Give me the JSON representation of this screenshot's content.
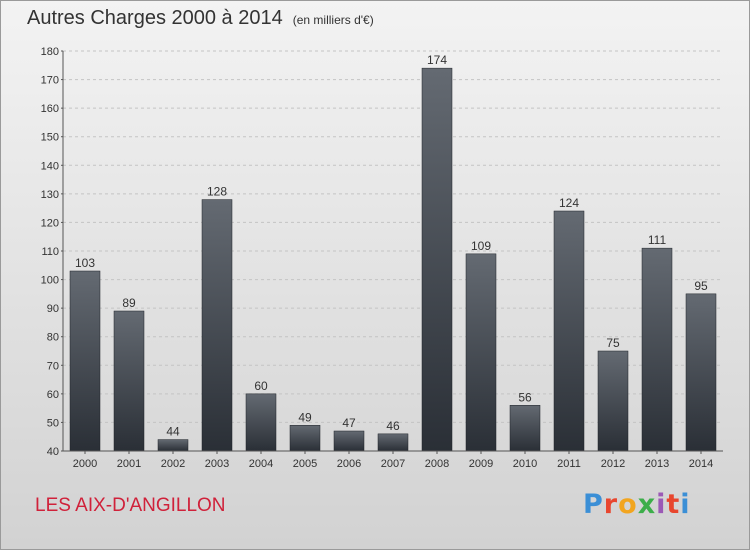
{
  "header": {
    "title": "Autres Charges 2000 à 2014",
    "subtitle": "(en milliers d'€)"
  },
  "footer": {
    "place": "LES AIX-D'ANGILLON",
    "logo_letters": [
      "P",
      "r",
      "o",
      "x",
      "i",
      "t",
      "i"
    ],
    "logo_colors": [
      "#3b8fd6",
      "#e8462e",
      "#f2a51f",
      "#3cae4a",
      "#9b59b6",
      "#e8462e",
      "#3b8fd6"
    ]
  },
  "chart_data": {
    "type": "bar",
    "title": "Autres Charges 2000 à 2014",
    "subtitle": "(en milliers d'€)",
    "categories": [
      "2000",
      "2001",
      "2002",
      "2003",
      "2004",
      "2005",
      "2006",
      "2007",
      "2008",
      "2009",
      "2010",
      "2011",
      "2012",
      "2013",
      "2014"
    ],
    "values": [
      103,
      89,
      44,
      128,
      60,
      49,
      47,
      46,
      174,
      109,
      56,
      124,
      75,
      111,
      95
    ],
    "ylim": [
      40,
      180
    ],
    "yticks": [
      "40",
      "50",
      "60",
      "70",
      "80",
      "90",
      "100",
      "110",
      "120",
      "130",
      "140",
      "150",
      "160",
      "170",
      "180"
    ],
    "grid": true,
    "bar_color_top": "#646a72",
    "bar_color_bottom": "#2a2f36"
  }
}
